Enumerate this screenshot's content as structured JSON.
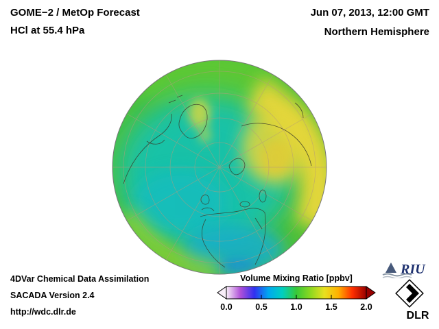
{
  "header": {
    "title_line1": "GOME−2 / MetOp Forecast",
    "title_line2": "HCl at 55.4 hPa",
    "date": "Jun 07, 2013, 12:00 GMT",
    "region": "Northern Hemisphere"
  },
  "footer": {
    "line1": "4DVar Chemical Data Assimilation",
    "line2": "SACADA Version 2.4",
    "line3": "http://wdc.dlr.de"
  },
  "colorbar": {
    "title": "Volume Mixing Ratio [ppbv]",
    "ticks": [
      "0.0",
      "0.5",
      "1.0",
      "1.5",
      "2.0"
    ],
    "colors": [
      "#f8eef8",
      "#b050d8",
      "#3030f0",
      "#00a8f0",
      "#00cfc0",
      "#38c838",
      "#8cd820",
      "#e8e020",
      "#ffb000",
      "#ff3000",
      "#980000"
    ]
  },
  "logos": {
    "riu_text": "RIU",
    "dlr_text": "DLR"
  },
  "chart_data": {
    "type": "heatmap",
    "title": "GOME−2 / MetOp Forecast — HCl at 55.4 hPa",
    "datetime": "Jun 07, 2013, 12:00 GMT",
    "region": "Northern Hemisphere (polar orthographic projection)",
    "variable": "HCl volume mixing ratio",
    "units": "ppbv",
    "scale_range": [
      0.0,
      2.0
    ],
    "scale_ticks": [
      0.0,
      0.5,
      1.0,
      1.5,
      2.0
    ],
    "observed_pattern": [
      {
        "region": "central Arctic / North Atlantic (cyan area)",
        "value_ppbv": 0.6
      },
      {
        "region": "arc over Siberia / eastern Russia (yellow band)",
        "value_ppbv": 1.4
      },
      {
        "region": "patches near Greenland (yellow spots)",
        "value_ppbv": 1.3
      },
      {
        "region": "mid-latitude background (green)",
        "value_ppbv": 1.0
      },
      {
        "region": "Africa / subtropical band (blue-cyan)",
        "value_ppbv": 0.6
      }
    ]
  }
}
